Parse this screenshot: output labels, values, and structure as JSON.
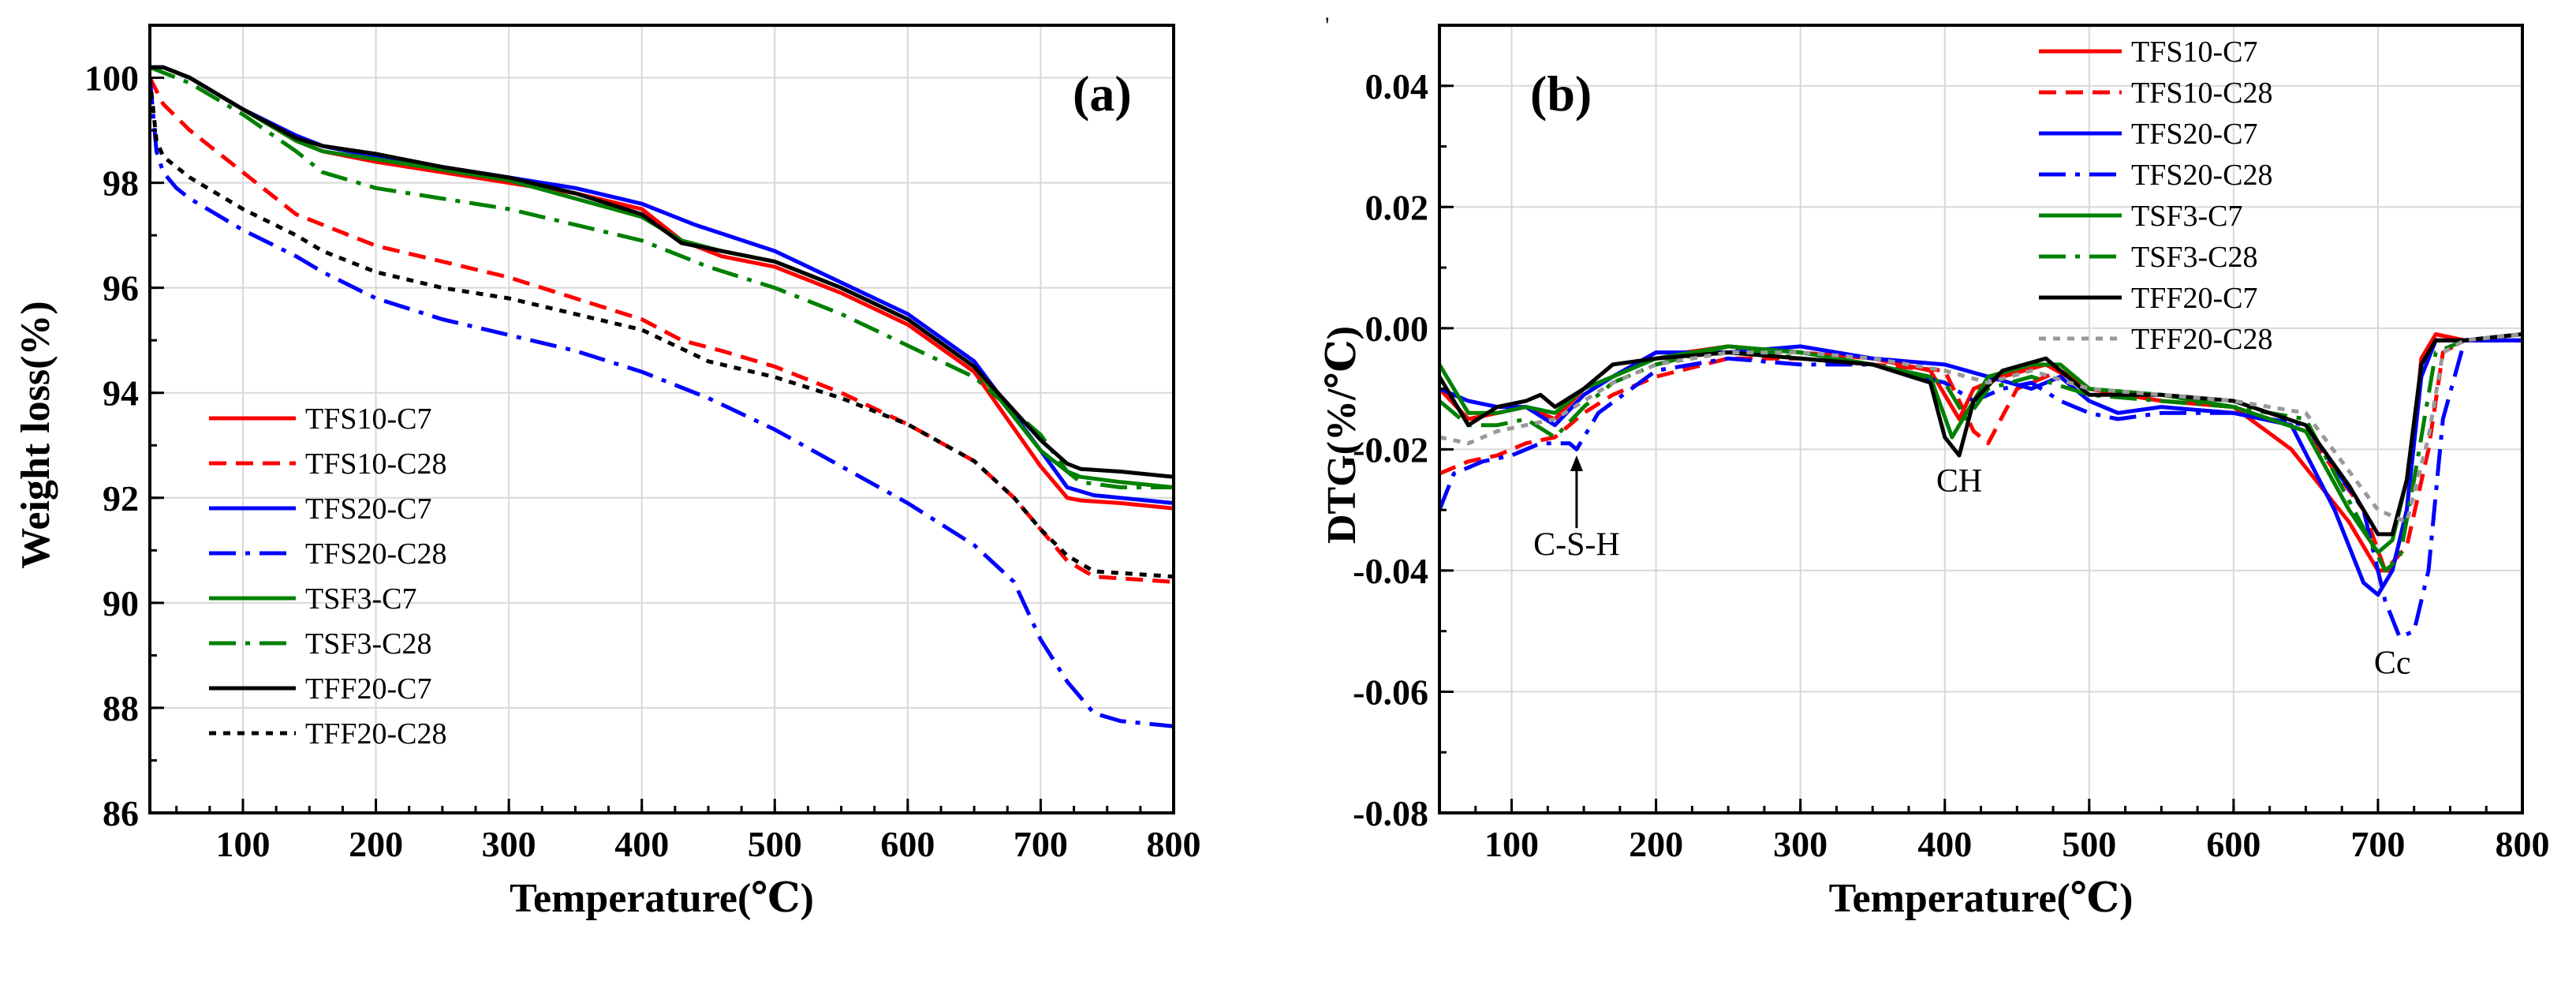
{
  "figure": {
    "stray_mark": "'"
  },
  "chart_data": [
    {
      "type": "line",
      "panel_label": "(a)",
      "xlabel": "Temperature(℃)",
      "ylabel": "Weight loss(%)",
      "xlim": [
        30,
        800
      ],
      "ylim": [
        86,
        101
      ],
      "xticks": [
        100,
        200,
        300,
        400,
        500,
        600,
        700,
        800
      ],
      "yticks": [
        86,
        88,
        90,
        92,
        94,
        96,
        98,
        100
      ],
      "grid": true,
      "legend_position": "bottom-left",
      "series": [
        {
          "name": "TFS10-C7",
          "color": "#ff0000",
          "dash": "solid",
          "x": [
            30,
            40,
            60,
            80,
            100,
            140,
            160,
            200,
            250,
            300,
            350,
            400,
            430,
            460,
            500,
            550,
            600,
            650,
            700,
            720,
            730,
            760,
            800
          ],
          "y": [
            100.2,
            100.2,
            100.0,
            99.7,
            99.4,
            98.8,
            98.6,
            98.4,
            98.2,
            98.0,
            97.8,
            97.5,
            96.9,
            96.6,
            96.4,
            95.9,
            95.3,
            94.4,
            92.6,
            92.0,
            91.95,
            91.9,
            91.8
          ]
        },
        {
          "name": "TFS10-C28",
          "color": "#ff0000",
          "dash": "dashed",
          "x": [
            30,
            40,
            60,
            80,
            100,
            140,
            160,
            200,
            250,
            300,
            350,
            400,
            430,
            460,
            500,
            550,
            600,
            650,
            680,
            700,
            720,
            740,
            800
          ],
          "y": [
            100.0,
            99.5,
            99.0,
            98.6,
            98.2,
            97.4,
            97.2,
            96.8,
            96.5,
            96.2,
            95.8,
            95.4,
            95.0,
            94.8,
            94.5,
            94.0,
            93.4,
            92.7,
            92.0,
            91.4,
            90.8,
            90.5,
            90.4
          ]
        },
        {
          "name": "TFS20-C7",
          "color": "#0000ff",
          "dash": "solid",
          "x": [
            30,
            40,
            60,
            80,
            100,
            140,
            160,
            200,
            250,
            300,
            350,
            400,
            440,
            500,
            550,
            600,
            650,
            700,
            720,
            740,
            800
          ],
          "y": [
            100.2,
            100.2,
            100.0,
            99.7,
            99.4,
            98.9,
            98.7,
            98.5,
            98.3,
            98.1,
            97.9,
            97.6,
            97.2,
            96.7,
            96.1,
            95.5,
            94.6,
            92.9,
            92.2,
            92.05,
            91.9
          ]
        },
        {
          "name": "TFS20-C28",
          "color": "#0000ff",
          "dash": "dashdot",
          "x": [
            30,
            35,
            40,
            50,
            60,
            80,
            100,
            140,
            160,
            200,
            250,
            300,
            350,
            400,
            450,
            500,
            550,
            600,
            650,
            680,
            700,
            720,
            740,
            760,
            800
          ],
          "y": [
            100.0,
            98.6,
            98.2,
            97.9,
            97.7,
            97.4,
            97.1,
            96.6,
            96.3,
            95.8,
            95.4,
            95.1,
            94.8,
            94.4,
            93.9,
            93.3,
            92.6,
            91.9,
            91.1,
            90.4,
            89.3,
            88.5,
            87.9,
            87.75,
            87.65
          ]
        },
        {
          "name": "TSF3-C7",
          "color": "#008000",
          "dash": "solid",
          "x": [
            30,
            40,
            60,
            80,
            100,
            140,
            160,
            200,
            250,
            300,
            350,
            400,
            430,
            460,
            500,
            550,
            600,
            650,
            700,
            720,
            730,
            760,
            800
          ],
          "y": [
            100.2,
            100.2,
            100.0,
            99.7,
            99.4,
            98.8,
            98.6,
            98.45,
            98.25,
            98.05,
            97.7,
            97.35,
            96.9,
            96.7,
            96.5,
            96.0,
            95.4,
            94.5,
            92.9,
            92.5,
            92.4,
            92.3,
            92.2
          ]
        },
        {
          "name": "TSF3-C28",
          "color": "#008000",
          "dash": "dashdot",
          "x": [
            30,
            40,
            60,
            80,
            100,
            140,
            160,
            200,
            250,
            300,
            350,
            400,
            450,
            500,
            550,
            600,
            650,
            700,
            720,
            730,
            760,
            800
          ],
          "y": [
            100.2,
            100.1,
            99.9,
            99.6,
            99.3,
            98.6,
            98.2,
            97.9,
            97.7,
            97.5,
            97.2,
            96.9,
            96.4,
            96.0,
            95.5,
            94.9,
            94.3,
            93.2,
            92.5,
            92.3,
            92.2,
            92.2
          ]
        },
        {
          "name": "TFF20-C7",
          "color": "#000000",
          "dash": "solid",
          "x": [
            30,
            40,
            60,
            80,
            100,
            140,
            160,
            200,
            250,
            300,
            350,
            400,
            430,
            460,
            500,
            550,
            600,
            650,
            700,
            720,
            730,
            760,
            800
          ],
          "y": [
            100.2,
            100.2,
            100.0,
            99.7,
            99.4,
            98.85,
            98.7,
            98.55,
            98.3,
            98.1,
            97.8,
            97.4,
            96.85,
            96.7,
            96.5,
            96.0,
            95.4,
            94.5,
            93.1,
            92.65,
            92.55,
            92.5,
            92.4
          ]
        },
        {
          "name": "TFF20-C28",
          "color": "#000000",
          "dash": "dotted",
          "x": [
            30,
            35,
            40,
            50,
            60,
            80,
            100,
            140,
            160,
            200,
            250,
            300,
            350,
            400,
            450,
            500,
            550,
            600,
            650,
            680,
            700,
            720,
            740,
            800
          ],
          "y": [
            100.0,
            98.8,
            98.5,
            98.3,
            98.1,
            97.8,
            97.5,
            97.0,
            96.7,
            96.3,
            96.0,
            95.8,
            95.5,
            95.2,
            94.6,
            94.3,
            93.9,
            93.4,
            92.7,
            92.0,
            91.4,
            90.9,
            90.6,
            90.5
          ]
        }
      ]
    },
    {
      "type": "line",
      "panel_label": "(b)",
      "xlabel": "Temperature(℃)",
      "ylabel": "DTG(%/℃)",
      "xlim": [
        50,
        800
      ],
      "ylim": [
        -0.08,
        0.05
      ],
      "xticks": [
        100,
        200,
        300,
        400,
        500,
        600,
        700,
        800
      ],
      "yticks": [
        -0.08,
        -0.06,
        -0.04,
        -0.02,
        0.0,
        0.02,
        0.04
      ],
      "ytick_labels": [
        "-0.08",
        "-0.06",
        "-0.04",
        "-0.02",
        "0.00",
        "0.02",
        "0.04"
      ],
      "grid": true,
      "legend_position": "top-right",
      "annotations": [
        {
          "text": "C-S-H",
          "x": 145,
          "y": -0.0375,
          "arrow_to": [
            145,
            -0.021
          ],
          "arrow_from_y": -0.033
        },
        {
          "text": "CH",
          "x": 410,
          "y": -0.027
        },
        {
          "text": "Cc",
          "x": 710,
          "y": -0.057
        }
      ],
      "series": [
        {
          "name": "TFS10-C7",
          "color": "#ff0000",
          "dash": "solid",
          "x": [
            50,
            70,
            90,
            110,
            130,
            150,
            170,
            200,
            220,
            250,
            300,
            350,
            390,
            410,
            420,
            440,
            470,
            500,
            550,
            600,
            640,
            680,
            700,
            710,
            720,
            730,
            740,
            760,
            800
          ],
          "y": [
            -0.01,
            -0.015,
            -0.014,
            -0.013,
            -0.015,
            -0.01,
            -0.008,
            -0.004,
            -0.004,
            -0.003,
            -0.004,
            -0.005,
            -0.007,
            -0.015,
            -0.01,
            -0.008,
            -0.006,
            -0.01,
            -0.012,
            -0.013,
            -0.02,
            -0.032,
            -0.04,
            -0.04,
            -0.03,
            -0.005,
            -0.001,
            -0.002,
            -0.002
          ]
        },
        {
          "name": "TFS10-C28",
          "color": "#ff0000",
          "dash": "dashed",
          "x": [
            50,
            70,
            90,
            110,
            130,
            150,
            170,
            200,
            250,
            300,
            350,
            400,
            420,
            430,
            450,
            480,
            500,
            550,
            600,
            650,
            690,
            705,
            720,
            735,
            745,
            760,
            800
          ],
          "y": [
            -0.024,
            -0.022,
            -0.021,
            -0.019,
            -0.018,
            -0.014,
            -0.011,
            -0.008,
            -0.005,
            -0.005,
            -0.006,
            -0.007,
            -0.017,
            -0.019,
            -0.01,
            -0.007,
            -0.01,
            -0.012,
            -0.013,
            -0.017,
            -0.03,
            -0.04,
            -0.036,
            -0.02,
            -0.004,
            -0.002,
            -0.002
          ]
        },
        {
          "name": "TFS20-C7",
          "color": "#0000ff",
          "dash": "solid",
          "x": [
            50,
            70,
            90,
            110,
            130,
            150,
            170,
            200,
            250,
            300,
            350,
            400,
            430,
            460,
            480,
            500,
            520,
            550,
            600,
            640,
            670,
            690,
            700,
            710,
            720,
            730,
            740,
            760,
            800
          ],
          "y": [
            -0.01,
            -0.012,
            -0.013,
            -0.013,
            -0.016,
            -0.011,
            -0.008,
            -0.004,
            -0.004,
            -0.003,
            -0.005,
            -0.006,
            -0.008,
            -0.01,
            -0.008,
            -0.012,
            -0.014,
            -0.013,
            -0.014,
            -0.016,
            -0.03,
            -0.042,
            -0.044,
            -0.04,
            -0.03,
            -0.008,
            -0.002,
            -0.002,
            -0.002
          ]
        },
        {
          "name": "TFS20-C28",
          "color": "#0000ff",
          "dash": "dashdot",
          "x": [
            50,
            60,
            80,
            100,
            120,
            140,
            145,
            160,
            200,
            250,
            300,
            350,
            400,
            420,
            440,
            460,
            480,
            500,
            520,
            550,
            600,
            650,
            690,
            705,
            715,
            725,
            735,
            745,
            760,
            800
          ],
          "y": [
            -0.03,
            -0.024,
            -0.022,
            -0.021,
            -0.019,
            -0.019,
            -0.02,
            -0.014,
            -0.007,
            -0.005,
            -0.006,
            -0.006,
            -0.009,
            -0.012,
            -0.01,
            -0.009,
            -0.012,
            -0.014,
            -0.015,
            -0.014,
            -0.014,
            -0.016,
            -0.03,
            -0.045,
            -0.051,
            -0.05,
            -0.04,
            -0.015,
            -0.002,
            -0.002
          ]
        },
        {
          "name": "TSF3-C7",
          "color": "#008000",
          "dash": "solid",
          "x": [
            50,
            70,
            90,
            110,
            130,
            150,
            170,
            200,
            250,
            300,
            350,
            390,
            405,
            415,
            430,
            460,
            480,
            500,
            550,
            600,
            650,
            680,
            700,
            710,
            720,
            730,
            740,
            760,
            800
          ],
          "y": [
            -0.006,
            -0.014,
            -0.014,
            -0.013,
            -0.014,
            -0.01,
            -0.008,
            -0.005,
            -0.003,
            -0.004,
            -0.006,
            -0.008,
            -0.018,
            -0.014,
            -0.008,
            -0.006,
            -0.006,
            -0.01,
            -0.011,
            -0.013,
            -0.017,
            -0.03,
            -0.037,
            -0.035,
            -0.025,
            -0.006,
            -0.002,
            -0.002,
            -0.001
          ]
        },
        {
          "name": "TSF3-C28",
          "color": "#008000",
          "dash": "dashdot",
          "x": [
            50,
            70,
            90,
            110,
            130,
            150,
            170,
            200,
            250,
            300,
            350,
            400,
            415,
            430,
            460,
            500,
            550,
            600,
            650,
            690,
            705,
            715,
            725,
            740,
            760,
            800
          ],
          "y": [
            -0.012,
            -0.016,
            -0.016,
            -0.015,
            -0.018,
            -0.013,
            -0.009,
            -0.006,
            -0.003,
            -0.005,
            -0.006,
            -0.009,
            -0.015,
            -0.01,
            -0.008,
            -0.011,
            -0.012,
            -0.013,
            -0.015,
            -0.033,
            -0.04,
            -0.038,
            -0.025,
            -0.004,
            -0.002,
            -0.001
          ]
        },
        {
          "name": "TFF20-C7",
          "color": "#000000",
          "dash": "solid",
          "x": [
            50,
            70,
            90,
            110,
            120,
            130,
            150,
            170,
            200,
            250,
            300,
            350,
            390,
            400,
            410,
            420,
            440,
            470,
            500,
            550,
            600,
            650,
            680,
            700,
            710,
            720,
            730,
            740,
            760,
            800
          ],
          "y": [
            -0.008,
            -0.016,
            -0.013,
            -0.012,
            -0.011,
            -0.013,
            -0.01,
            -0.006,
            -0.005,
            -0.004,
            -0.005,
            -0.006,
            -0.009,
            -0.018,
            -0.021,
            -0.012,
            -0.007,
            -0.005,
            -0.011,
            -0.011,
            -0.012,
            -0.016,
            -0.026,
            -0.034,
            -0.034,
            -0.025,
            -0.006,
            -0.002,
            -0.002,
            -0.001
          ]
        },
        {
          "name": "TFF20-C28",
          "color": "#999999",
          "dash": "dotted",
          "x": [
            50,
            70,
            90,
            110,
            130,
            150,
            170,
            200,
            250,
            300,
            350,
            400,
            430,
            460,
            500,
            550,
            600,
            650,
            700,
            720,
            735,
            745,
            760,
            800
          ],
          "y": [
            -0.018,
            -0.019,
            -0.017,
            -0.016,
            -0.015,
            -0.012,
            -0.009,
            -0.006,
            -0.004,
            -0.004,
            -0.005,
            -0.007,
            -0.009,
            -0.007,
            -0.01,
            -0.011,
            -0.012,
            -0.014,
            -0.03,
            -0.032,
            -0.018,
            -0.004,
            -0.002,
            -0.001
          ]
        }
      ]
    }
  ]
}
